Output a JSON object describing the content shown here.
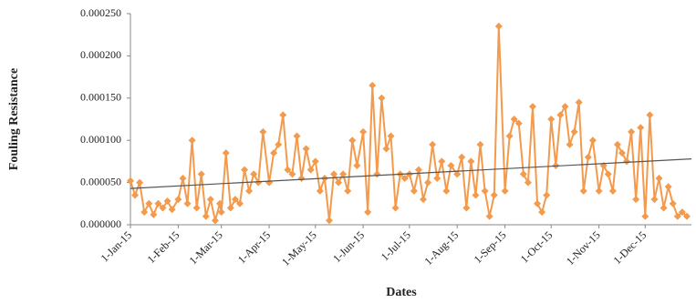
{
  "chart_data": {
    "type": "line",
    "x_label": "Dates",
    "y_label": "Fouling Resistance",
    "x": [
      "2015-01-01",
      "2015-01-04",
      "2015-01-07",
      "2015-01-10",
      "2015-01-13",
      "2015-01-16",
      "2015-01-19",
      "2015-01-22",
      "2015-01-25",
      "2015-01-28",
      "2015-02-01",
      "2015-02-04",
      "2015-02-07",
      "2015-02-10",
      "2015-02-13",
      "2015-02-16",
      "2015-02-19",
      "2015-02-22",
      "2015-02-25",
      "2015-02-28",
      "2015-03-01",
      "2015-03-04",
      "2015-03-07",
      "2015-03-10",
      "2015-03-13",
      "2015-03-16",
      "2015-03-19",
      "2015-03-22",
      "2015-03-25",
      "2015-03-28",
      "2015-04-01",
      "2015-04-04",
      "2015-04-07",
      "2015-04-10",
      "2015-04-13",
      "2015-04-16",
      "2015-04-19",
      "2015-04-22",
      "2015-04-25",
      "2015-04-28",
      "2015-05-01",
      "2015-05-04",
      "2015-05-07",
      "2015-05-10",
      "2015-05-13",
      "2015-05-16",
      "2015-05-19",
      "2015-05-22",
      "2015-05-25",
      "2015-05-28",
      "2015-06-01",
      "2015-06-04",
      "2015-06-07",
      "2015-06-10",
      "2015-06-13",
      "2015-06-16",
      "2015-06-19",
      "2015-06-22",
      "2015-06-25",
      "2015-06-28",
      "2015-07-01",
      "2015-07-04",
      "2015-07-07",
      "2015-07-10",
      "2015-07-13",
      "2015-07-16",
      "2015-07-19",
      "2015-07-22",
      "2015-07-25",
      "2015-07-28",
      "2015-08-01",
      "2015-08-04",
      "2015-08-07",
      "2015-08-10",
      "2015-08-13",
      "2015-08-16",
      "2015-08-19",
      "2015-08-22",
      "2015-08-25",
      "2015-08-28",
      "2015-09-01",
      "2015-09-04",
      "2015-09-07",
      "2015-09-10",
      "2015-09-13",
      "2015-09-16",
      "2015-09-19",
      "2015-09-22",
      "2015-09-25",
      "2015-09-28",
      "2015-10-01",
      "2015-10-04",
      "2015-10-07",
      "2015-10-10",
      "2015-10-13",
      "2015-10-16",
      "2015-10-19",
      "2015-10-22",
      "2015-10-25",
      "2015-10-28",
      "2015-11-01",
      "2015-11-04",
      "2015-11-07",
      "2015-11-10",
      "2015-11-13",
      "2015-11-16",
      "2015-11-19",
      "2015-11-22",
      "2015-11-25",
      "2015-11-28",
      "2015-12-01",
      "2015-12-04",
      "2015-12-07",
      "2015-12-10",
      "2015-12-13",
      "2015-12-16",
      "2015-12-19",
      "2015-12-22",
      "2015-12-25",
      "2015-12-28"
    ],
    "series": [
      {
        "color": "#f39a4c",
        "values": [
          5.2e-05,
          3.5e-05,
          5e-05,
          1.5e-05,
          2.5e-05,
          1.2e-05,
          2.5e-05,
          2e-05,
          2.8e-05,
          1.8e-05,
          3e-05,
          5.5e-05,
          2.5e-05,
          0.0001,
          2e-05,
          6e-05,
          1e-05,
          3e-05,
          5e-06,
          2.5e-05,
          1.5e-05,
          8.5e-05,
          2e-05,
          3e-05,
          2.5e-05,
          6.5e-05,
          4e-05,
          6e-05,
          5e-05,
          0.00011,
          5e-05,
          8.5e-05,
          9.5e-05,
          0.00013,
          6.5e-05,
          6e-05,
          0.000105,
          5.5e-05,
          9e-05,
          6.5e-05,
          7.5e-05,
          4e-05,
          5.5e-05,
          5e-06,
          6e-05,
          5e-05,
          6e-05,
          4e-05,
          0.0001,
          7e-05,
          0.00011,
          1.5e-05,
          0.000165,
          6e-05,
          0.00015,
          9e-05,
          0.000105,
          2e-05,
          6e-05,
          5.5e-05,
          6e-05,
          4e-05,
          6.5e-05,
          3e-05,
          5e-05,
          9.5e-05,
          5.5e-05,
          7.5e-05,
          4e-05,
          7e-05,
          6e-05,
          8e-05,
          2e-05,
          7.5e-05,
          3.5e-05,
          9.5e-05,
          4e-05,
          1e-05,
          3.5e-05,
          0.000235,
          4e-05,
          0.000105,
          0.000125,
          0.00012,
          6e-05,
          5e-05,
          0.00014,
          2.5e-05,
          1.5e-05,
          3.5e-05,
          0.000125,
          7e-05,
          0.00013,
          0.00014,
          9.5e-05,
          0.00011,
          0.000145,
          4e-05,
          8e-05,
          0.0001,
          4e-05,
          7e-05,
          6e-05,
          4e-05,
          9.5e-05,
          8.5e-05,
          7.5e-05,
          0.00011,
          3e-05,
          0.000115,
          1e-05,
          0.00013,
          3e-05,
          5.5e-05,
          2e-05,
          4.5e-05,
          2.5e-05,
          1e-05,
          1.5e-05,
          1e-05
        ]
      }
    ],
    "trendline": {
      "color": "#555555",
      "x": [
        "2015-01-01",
        "2015-12-31"
      ],
      "values": [
        4.3e-05,
        7.8e-05
      ]
    },
    "xlim": [
      "2015-01-01",
      "2015-12-31"
    ],
    "xticks": [
      {
        "value": "2015-01-01",
        "label": "1-Jan-15"
      },
      {
        "value": "2015-02-01",
        "label": "1-Feb-15"
      },
      {
        "value": "2015-03-01",
        "label": "1-Mar-15"
      },
      {
        "value": "2015-04-01",
        "label": "1-Apr-15"
      },
      {
        "value": "2015-05-01",
        "label": "1-May-15"
      },
      {
        "value": "2015-06-01",
        "label": "1-Jun-15"
      },
      {
        "value": "2015-07-01",
        "label": "1-Jul-15"
      },
      {
        "value": "2015-08-01",
        "label": "1-Aug-15"
      },
      {
        "value": "2015-09-01",
        "label": "1-Sep-15"
      },
      {
        "value": "2015-10-01",
        "label": "1-Oct-15"
      },
      {
        "value": "2015-11-01",
        "label": "1-Nov-15"
      },
      {
        "value": "2015-12-01",
        "label": "1-Dec-15"
      }
    ],
    "ylim": [
      0,
      0.00025
    ],
    "yticks": [
      {
        "value": 0,
        "label": "0.000000"
      },
      {
        "value": 5e-05,
        "label": "0.000050"
      },
      {
        "value": 0.0001,
        "label": "0.000100"
      },
      {
        "value": 0.00015,
        "label": "0.000150"
      },
      {
        "value": 0.0002,
        "label": "0.000200"
      },
      {
        "value": 0.00025,
        "label": "0.000250"
      }
    ],
    "grid": false
  }
}
